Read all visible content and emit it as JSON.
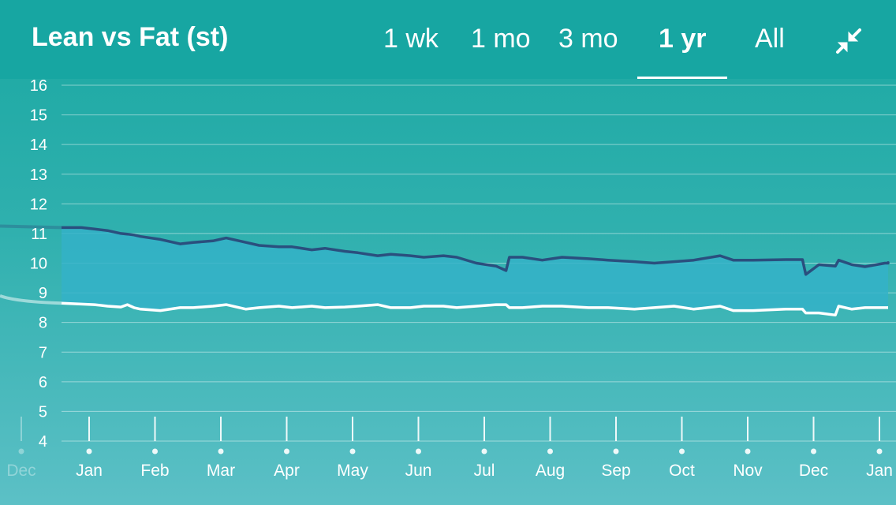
{
  "header": {
    "title": "Lean vs Fat (st)",
    "tabs": [
      {
        "label": "1 wk",
        "active": false
      },
      {
        "label": "1 mo",
        "active": false
      },
      {
        "label": "3 mo",
        "active": false
      },
      {
        "label": "1 yr",
        "active": true
      },
      {
        "label": "All",
        "active": false
      }
    ],
    "collapse_icon": "collapse-arrows-icon"
  },
  "colors": {
    "header_bg": "#17a6a2",
    "total_line": "#2a4f7e",
    "lean_line": "#ffffff",
    "fill": "#34b2c8"
  },
  "chart_data": {
    "type": "area",
    "title": "Lean vs Fat (st)",
    "ylim": [
      4,
      16
    ],
    "yticks": [
      4,
      5,
      6,
      7,
      8,
      9,
      10,
      11,
      12,
      13,
      14,
      15,
      16
    ],
    "grid": true,
    "x_labels": [
      {
        "label": "Dec",
        "faded": true
      },
      {
        "label": "Jan"
      },
      {
        "label": "Feb"
      },
      {
        "label": "Mar"
      },
      {
        "label": "Apr"
      },
      {
        "label": "May"
      },
      {
        "label": "Jun"
      },
      {
        "label": "Jul"
      },
      {
        "label": "Aug"
      },
      {
        "label": "Sep"
      },
      {
        "label": "Oct"
      },
      {
        "label": "Nov"
      },
      {
        "label": "Dec"
      },
      {
        "label": "Jan"
      }
    ],
    "x": [
      0,
      0.3,
      0.5,
      0.7,
      0.9,
      1.0,
      1.1,
      1.2,
      1.5,
      1.8,
      2.0,
      2.3,
      2.5,
      2.8,
      3.0,
      3.3,
      3.5,
      3.8,
      4.0,
      4.3,
      4.5,
      4.8,
      5.0,
      5.3,
      5.5,
      5.8,
      6.0,
      6.3,
      6.6,
      6.75,
      6.8,
      7.0,
      7.3,
      7.6,
      8.0,
      8.3,
      8.7,
      9.0,
      9.3,
      9.6,
      10.0,
      10.2,
      10.5,
      11.0,
      11.25,
      11.3,
      11.5,
      11.75,
      11.8,
      12.0,
      12.2,
      12.5,
      12.8,
      13.0,
      13.1
    ],
    "series": [
      {
        "values": [
          11.2,
          11.2,
          11.15,
          11.1,
          11.0,
          10.98,
          10.95,
          10.9,
          10.8,
          10.65,
          10.7,
          10.75,
          10.85,
          10.7,
          10.6,
          10.55,
          10.55,
          10.45,
          10.5,
          10.4,
          10.35,
          10.25,
          10.3,
          10.25,
          10.2,
          10.25,
          10.2,
          10.0,
          9.9,
          9.75,
          10.2,
          10.2,
          10.1,
          10.2,
          10.15,
          10.1,
          10.05,
          10.0,
          10.05,
          10.1,
          10.25,
          10.1,
          10.1,
          10.12,
          10.12,
          9.62,
          9.95,
          9.9,
          10.1,
          9.95,
          9.88,
          10.0,
          10.0,
          10.02,
          10.0
        ]
      },
      {
        "values": [
          8.65,
          8.62,
          8.6,
          8.55,
          8.52,
          8.6,
          8.5,
          8.45,
          8.4,
          8.5,
          8.5,
          8.55,
          8.6,
          8.45,
          8.5,
          8.55,
          8.5,
          8.55,
          8.5,
          8.52,
          8.55,
          8.6,
          8.5,
          8.5,
          8.55,
          8.55,
          8.5,
          8.55,
          8.6,
          8.6,
          8.5,
          8.5,
          8.55,
          8.55,
          8.5,
          8.5,
          8.45,
          8.5,
          8.55,
          8.45,
          8.55,
          8.4,
          8.4,
          8.45,
          8.45,
          8.32,
          8.32,
          8.25,
          8.55,
          8.45,
          8.5,
          8.5,
          8.5,
          8.5,
          8.5
        ]
      }
    ]
  }
}
